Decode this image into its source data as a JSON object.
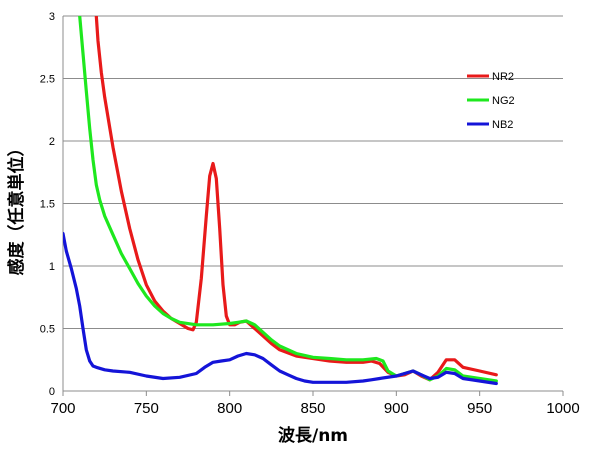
{
  "chart_data": {
    "type": "line",
    "title": "",
    "xlabel": "波長/nm",
    "ylabel": "感度（任意単位）",
    "xlim": [
      700,
      1000
    ],
    "ylim": [
      0,
      3
    ],
    "x_ticks": [
      "700",
      "750",
      "800",
      "850",
      "900",
      "950",
      "1000"
    ],
    "y_ticks": [
      "0",
      "0.5",
      "1",
      "1.5",
      "2",
      "2.5",
      "3"
    ],
    "grid": "horizontal",
    "legend": "right",
    "series": [
      {
        "name": "NR2",
        "color": "#e81a1a",
        "points": [
          [
            720,
            3.0
          ],
          [
            721,
            2.8
          ],
          [
            723,
            2.55
          ],
          [
            725,
            2.35
          ],
          [
            730,
            1.95
          ],
          [
            735,
            1.6
          ],
          [
            740,
            1.3
          ],
          [
            745,
            1.05
          ],
          [
            750,
            0.85
          ],
          [
            755,
            0.72
          ],
          [
            760,
            0.64
          ],
          [
            765,
            0.58
          ],
          [
            770,
            0.54
          ],
          [
            775,
            0.5
          ],
          [
            778,
            0.49
          ],
          [
            780,
            0.55
          ],
          [
            783,
            0.9
          ],
          [
            786,
            1.4
          ],
          [
            788,
            1.72
          ],
          [
            790,
            1.82
          ],
          [
            792,
            1.7
          ],
          [
            794,
            1.3
          ],
          [
            796,
            0.85
          ],
          [
            798,
            0.6
          ],
          [
            800,
            0.53
          ],
          [
            803,
            0.53
          ],
          [
            806,
            0.55
          ],
          [
            810,
            0.56
          ],
          [
            815,
            0.5
          ],
          [
            820,
            0.44
          ],
          [
            825,
            0.38
          ],
          [
            830,
            0.33
          ],
          [
            840,
            0.28
          ],
          [
            850,
            0.26
          ],
          [
            860,
            0.24
          ],
          [
            870,
            0.23
          ],
          [
            880,
            0.23
          ],
          [
            885,
            0.24
          ],
          [
            890,
            0.22
          ],
          [
            895,
            0.15
          ],
          [
            900,
            0.12
          ],
          [
            905,
            0.13
          ],
          [
            910,
            0.16
          ],
          [
            915,
            0.12
          ],
          [
            920,
            0.09
          ],
          [
            925,
            0.15
          ],
          [
            930,
            0.25
          ],
          [
            935,
            0.25
          ],
          [
            940,
            0.19
          ],
          [
            950,
            0.16
          ],
          [
            960,
            0.13
          ]
        ]
      },
      {
        "name": "NG2",
        "color": "#1ee81e",
        "points": [
          [
            710,
            3.0
          ],
          [
            712,
            2.7
          ],
          [
            714,
            2.4
          ],
          [
            716,
            2.1
          ],
          [
            718,
            1.85
          ],
          [
            720,
            1.65
          ],
          [
            722,
            1.53
          ],
          [
            725,
            1.4
          ],
          [
            730,
            1.25
          ],
          [
            735,
            1.1
          ],
          [
            740,
            0.98
          ],
          [
            745,
            0.86
          ],
          [
            750,
            0.76
          ],
          [
            755,
            0.68
          ],
          [
            760,
            0.62
          ],
          [
            765,
            0.58
          ],
          [
            770,
            0.55
          ],
          [
            780,
            0.53
          ],
          [
            790,
            0.53
          ],
          [
            800,
            0.54
          ],
          [
            805,
            0.55
          ],
          [
            810,
            0.56
          ],
          [
            815,
            0.53
          ],
          [
            820,
            0.47
          ],
          [
            825,
            0.41
          ],
          [
            830,
            0.36
          ],
          [
            840,
            0.3
          ],
          [
            850,
            0.27
          ],
          [
            860,
            0.26
          ],
          [
            870,
            0.25
          ],
          [
            880,
            0.25
          ],
          [
            888,
            0.26
          ],
          [
            892,
            0.24
          ],
          [
            895,
            0.16
          ],
          [
            900,
            0.12
          ],
          [
            905,
            0.14
          ],
          [
            910,
            0.16
          ],
          [
            915,
            0.13
          ],
          [
            920,
            0.09
          ],
          [
            925,
            0.12
          ],
          [
            930,
            0.18
          ],
          [
            935,
            0.17
          ],
          [
            940,
            0.12
          ],
          [
            950,
            0.1
          ],
          [
            960,
            0.08
          ]
        ]
      },
      {
        "name": "NB2",
        "color": "#1414d8",
        "points": [
          [
            700,
            1.26
          ],
          [
            702,
            1.12
          ],
          [
            705,
            0.98
          ],
          [
            708,
            0.82
          ],
          [
            710,
            0.68
          ],
          [
            712,
            0.5
          ],
          [
            714,
            0.33
          ],
          [
            716,
            0.24
          ],
          [
            718,
            0.2
          ],
          [
            720,
            0.19
          ],
          [
            725,
            0.17
          ],
          [
            730,
            0.16
          ],
          [
            740,
            0.15
          ],
          [
            750,
            0.12
          ],
          [
            760,
            0.1
          ],
          [
            770,
            0.11
          ],
          [
            780,
            0.14
          ],
          [
            785,
            0.19
          ],
          [
            790,
            0.23
          ],
          [
            795,
            0.24
          ],
          [
            800,
            0.25
          ],
          [
            805,
            0.28
          ],
          [
            810,
            0.3
          ],
          [
            815,
            0.29
          ],
          [
            820,
            0.26
          ],
          [
            825,
            0.21
          ],
          [
            830,
            0.16
          ],
          [
            835,
            0.13
          ],
          [
            840,
            0.1
          ],
          [
            845,
            0.08
          ],
          [
            850,
            0.07
          ],
          [
            860,
            0.07
          ],
          [
            870,
            0.07
          ],
          [
            880,
            0.08
          ],
          [
            885,
            0.09
          ],
          [
            890,
            0.1
          ],
          [
            900,
            0.12
          ],
          [
            905,
            0.14
          ],
          [
            910,
            0.16
          ],
          [
            915,
            0.13
          ],
          [
            920,
            0.1
          ],
          [
            925,
            0.11
          ],
          [
            930,
            0.15
          ],
          [
            935,
            0.14
          ],
          [
            940,
            0.1
          ],
          [
            950,
            0.08
          ],
          [
            960,
            0.06
          ]
        ]
      }
    ]
  }
}
